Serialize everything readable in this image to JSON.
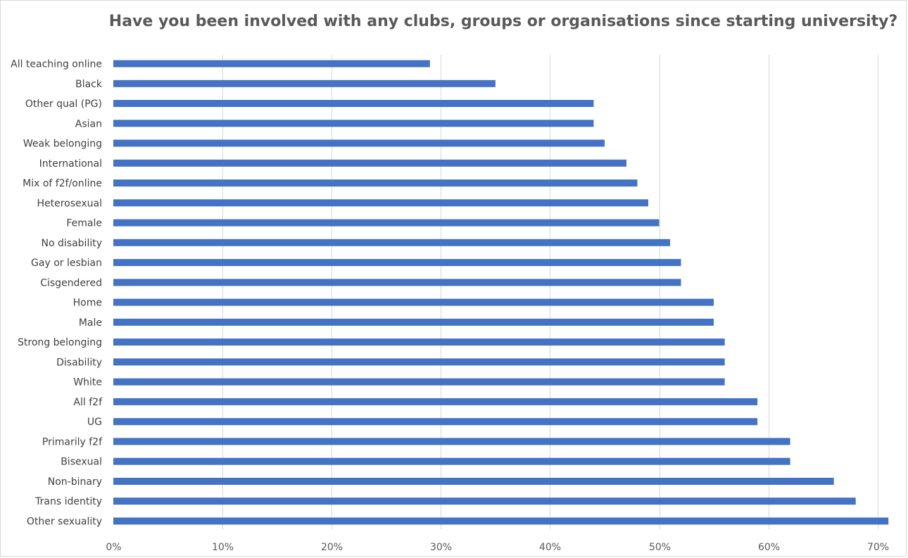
{
  "chart_data": {
    "type": "bar",
    "orientation": "horizontal",
    "title": "Have you been involved with any clubs, groups or organisations since starting university?",
    "xlabel": "",
    "ylabel": "",
    "xlim": [
      0,
      70
    ],
    "tick_values": [
      0,
      10,
      20,
      30,
      40,
      50,
      60,
      70
    ],
    "tick_labels": [
      "0%",
      "10%",
      "20%",
      "30%",
      "40%",
      "50%",
      "60%",
      "70%"
    ],
    "grid": true,
    "legend": "none",
    "bar_color": "#4472c4",
    "categories": [
      "All teaching online",
      "Black",
      "Other qual (PG)",
      "Asian",
      "Weak belonging",
      "International",
      "Mix of f2f/online",
      "Heterosexual",
      "Female",
      "No disability",
      "Gay or lesbian",
      "Cisgendered",
      "Home",
      "Male",
      "Strong belonging",
      "Disability",
      "White",
      "All f2f",
      "UG",
      "Primarily f2f",
      "Bisexual",
      "Non-binary",
      "Trans identity",
      "Other sexuality"
    ],
    "values": [
      29,
      35,
      44,
      44,
      45,
      47,
      48,
      49,
      50,
      51,
      52,
      52,
      55,
      55,
      56,
      56,
      56,
      59,
      59,
      62,
      62,
      66,
      68,
      71
    ]
  }
}
